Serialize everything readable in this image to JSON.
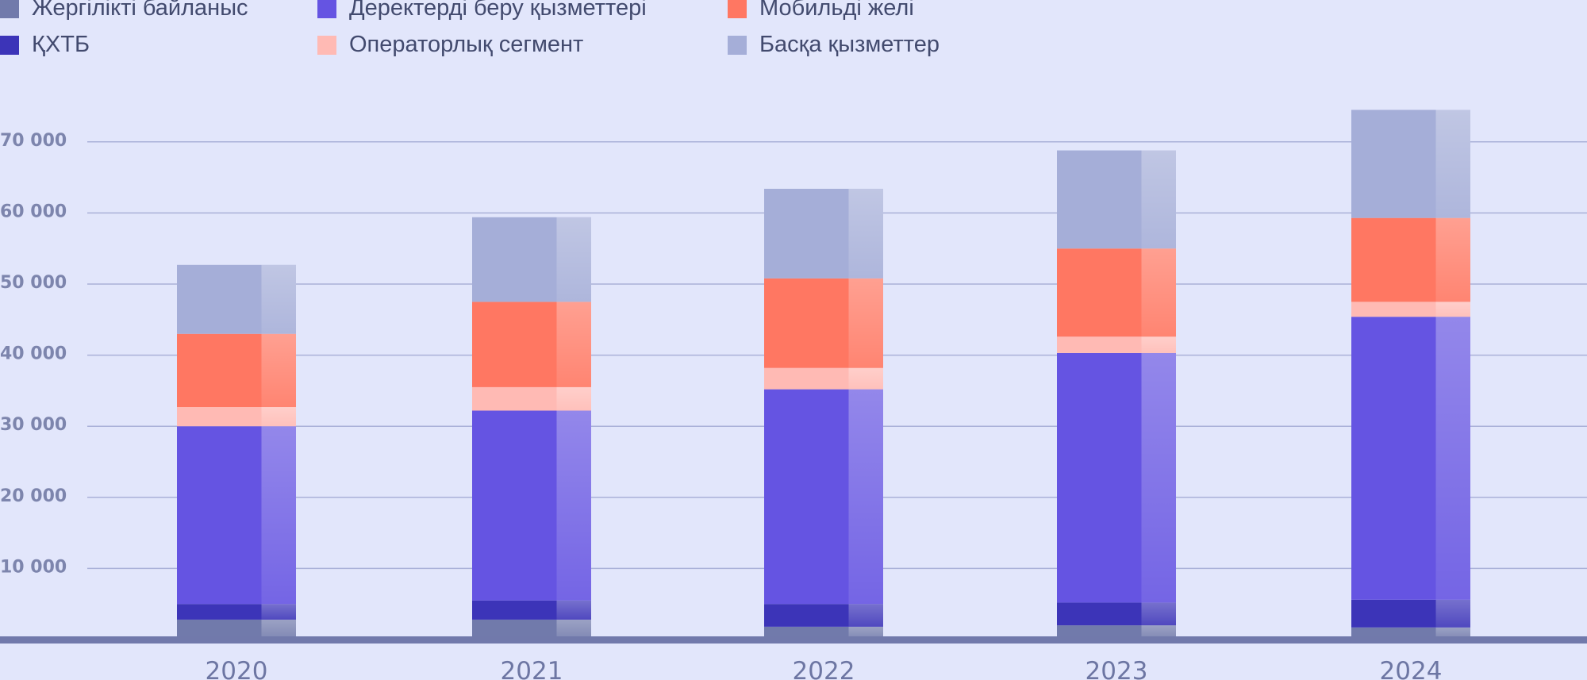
{
  "chart_data": {
    "type": "bar",
    "stacked": true,
    "categories": [
      "2020",
      "2021",
      "2022",
      "2023",
      "2024"
    ],
    "series": [
      {
        "name": "Жергілікті байланыс",
        "color": "#717aab",
        "values": [
          2800,
          2800,
          1800,
          2000,
          1700
        ]
      },
      {
        "name": "ҚХТБ",
        "color": "#3c34b8",
        "values": [
          2200,
          2700,
          3200,
          3200,
          3900
        ]
      },
      {
        "name": "Деректерді беру қызметтері",
        "color": "#6554e2",
        "values": [
          25000,
          26700,
          30200,
          35100,
          39800
        ]
      },
      {
        "name": "Операторлық сегмент",
        "color": "#ffbab4",
        "values": [
          2700,
          3300,
          3000,
          2300,
          2100
        ]
      },
      {
        "name": "Мобильді желі",
        "color": "#ff7762",
        "values": [
          10300,
          12000,
          12600,
          12400,
          11800
        ]
      },
      {
        "name": "Басқа қызметтер",
        "color": "#a5aed8",
        "values": [
          9700,
          11900,
          12600,
          13800,
          15200
        ]
      }
    ],
    "yticks": [
      "10 000",
      "20 000",
      "30 000",
      "40 000",
      "50 000",
      "60 000",
      "70 000"
    ],
    "ylim": [
      0,
      80000
    ],
    "grid": true,
    "legend_position": "top-left",
    "title": "",
    "xlabel": "",
    "ylabel": ""
  }
}
